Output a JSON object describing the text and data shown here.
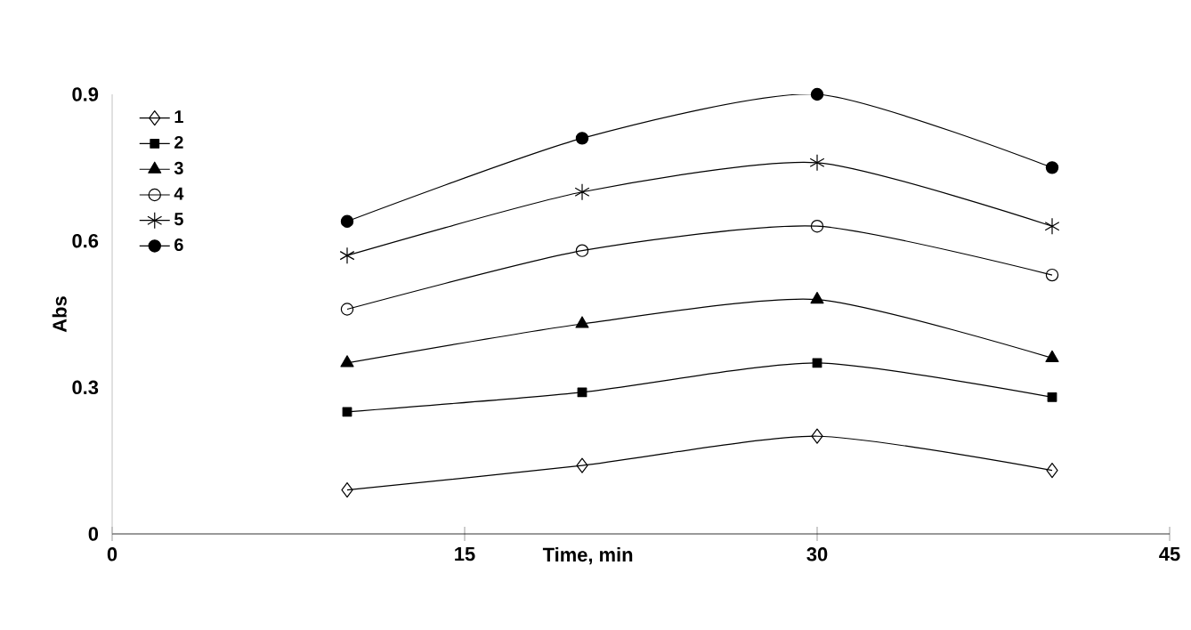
{
  "chart_data": {
    "type": "line",
    "xlabel": "Time, min",
    "ylabel": "Abs",
    "x": [
      10,
      20,
      30,
      40
    ],
    "xlim": [
      0,
      45
    ],
    "xticks": [
      0,
      15,
      30,
      45
    ],
    "ylim": [
      0,
      0.9
    ],
    "yticks": [
      0,
      0.3,
      0.6,
      0.9
    ],
    "legend": "top left",
    "grid": false,
    "series": [
      {
        "name": "1",
        "color": "#000000",
        "marker": "diamond",
        "values": [
          0.09,
          0.14,
          0.2,
          0.13
        ]
      },
      {
        "name": "2",
        "color": "#000000",
        "marker": "square",
        "values": [
          0.25,
          0.29,
          0.35,
          0.28
        ]
      },
      {
        "name": "3",
        "color": "#000000",
        "marker": "triangle",
        "values": [
          0.35,
          0.43,
          0.48,
          0.36
        ]
      },
      {
        "name": "4",
        "color": "#000000",
        "marker": "circle",
        "values": [
          0.46,
          0.58,
          0.63,
          0.53
        ]
      },
      {
        "name": "5",
        "color": "#000000",
        "marker": "cross",
        "values": [
          0.57,
          0.7,
          0.76,
          0.63
        ]
      },
      {
        "name": "6",
        "color": "#000000",
        "marker": "circle",
        "values": [
          0.64,
          0.81,
          0.9,
          0.75
        ]
      }
    ]
  }
}
